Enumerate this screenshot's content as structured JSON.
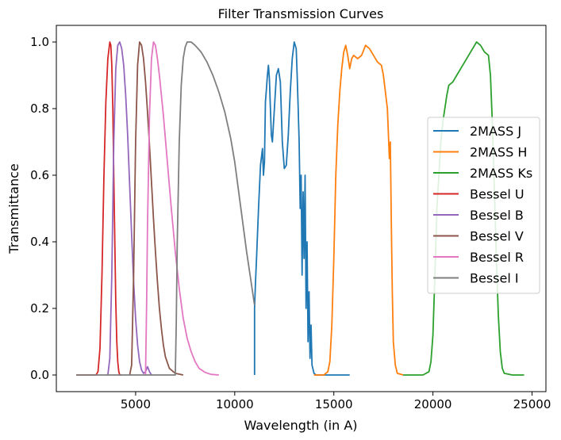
{
  "chart_data": {
    "type": "line",
    "title": "Filter Transmission Curves",
    "xlabel": "Wavelength (in A)",
    "ylabel": "Transmittance",
    "xlim": [
      1000,
      25700
    ],
    "ylim": [
      -0.05,
      1.05
    ],
    "xticks": [
      5000,
      10000,
      15000,
      20000,
      25000
    ],
    "yticks": [
      0.0,
      0.2,
      0.4,
      0.6,
      0.8,
      1.0
    ],
    "ytick_labels": [
      "0.0",
      "0.2",
      "0.4",
      "0.6",
      "0.8",
      "1.0"
    ],
    "grid": false,
    "legend_position": "center-right",
    "series": [
      {
        "name": "2MASS J",
        "color": "#1f77b4",
        "x": [
          11000,
          11000,
          11050,
          11100,
          11200,
          11300,
          11400,
          11450,
          11500,
          11550,
          11600,
          11650,
          11700,
          11750,
          11800,
          11850,
          11900,
          12000,
          12100,
          12200,
          12300,
          12400,
          12500,
          12600,
          12700,
          12800,
          12900,
          13000,
          13100,
          13150,
          13200,
          13250,
          13300,
          13350,
          13400,
          13450,
          13500,
          13550,
          13600,
          13650,
          13700,
          13750,
          13800,
          13850,
          13900,
          14000,
          14100,
          14200,
          14400,
          15000,
          15800
        ],
        "y": [
          0.0,
          0.2,
          0.28,
          0.35,
          0.5,
          0.63,
          0.68,
          0.6,
          0.64,
          0.82,
          0.86,
          0.9,
          0.93,
          0.89,
          0.8,
          0.72,
          0.7,
          0.8,
          0.9,
          0.92,
          0.88,
          0.7,
          0.62,
          0.63,
          0.72,
          0.85,
          0.95,
          1.0,
          0.98,
          0.9,
          0.8,
          0.7,
          0.5,
          0.6,
          0.3,
          0.55,
          0.35,
          0.6,
          0.2,
          0.4,
          0.1,
          0.25,
          0.05,
          0.15,
          0.03,
          0.005,
          0.0,
          0.0,
          0.0,
          0.0,
          0.0
        ]
      },
      {
        "name": "2MASS H",
        "color": "#ff7f0e",
        "x": [
          14000,
          14500,
          14700,
          14800,
          14900,
          15000,
          15100,
          15200,
          15300,
          15400,
          15500,
          15600,
          15700,
          15800,
          15900,
          16000,
          16200,
          16400,
          16600,
          16800,
          17000,
          17200,
          17400,
          17500,
          17600,
          17700,
          17800,
          17850,
          17900,
          17950,
          18000,
          18100,
          18200,
          18500
        ],
        "y": [
          0.0,
          0.0,
          0.01,
          0.04,
          0.15,
          0.35,
          0.6,
          0.75,
          0.85,
          0.92,
          0.97,
          0.99,
          0.96,
          0.92,
          0.95,
          0.96,
          0.95,
          0.96,
          0.99,
          0.98,
          0.96,
          0.94,
          0.93,
          0.9,
          0.85,
          0.8,
          0.65,
          0.7,
          0.45,
          0.25,
          0.1,
          0.03,
          0.005,
          0.0
        ]
      },
      {
        "name": "2MASS Ks",
        "color": "#2ca02c",
        "x": [
          18500,
          19000,
          19500,
          19800,
          19900,
          20000,
          20100,
          20200,
          20300,
          20400,
          20500,
          20600,
          20700,
          20800,
          21000,
          21200,
          21400,
          21600,
          21800,
          22000,
          22200,
          22400,
          22600,
          22800,
          22900,
          23000,
          23100,
          23200,
          23300,
          23400,
          23500,
          23600,
          24000,
          24600
        ],
        "y": [
          0.0,
          0.0,
          0.0,
          0.01,
          0.04,
          0.12,
          0.3,
          0.5,
          0.6,
          0.7,
          0.76,
          0.8,
          0.84,
          0.87,
          0.88,
          0.9,
          0.92,
          0.94,
          0.96,
          0.98,
          1.0,
          0.99,
          0.97,
          0.96,
          0.9,
          0.75,
          0.55,
          0.35,
          0.18,
          0.07,
          0.02,
          0.005,
          0.0,
          0.0
        ]
      },
      {
        "name": "Bessel U",
        "color": "#d62728",
        "x": [
          2000,
          3000,
          3100,
          3200,
          3300,
          3400,
          3500,
          3600,
          3700,
          3750,
          3800,
          3850,
          3900,
          3950,
          4000,
          4050,
          4100,
          4150,
          4200,
          4300
        ],
        "y": [
          0.0,
          0.0,
          0.01,
          0.08,
          0.3,
          0.6,
          0.82,
          0.95,
          1.0,
          0.99,
          0.93,
          0.8,
          0.6,
          0.4,
          0.22,
          0.1,
          0.04,
          0.01,
          0.0,
          0.0
        ]
      },
      {
        "name": "Bessel B",
        "color": "#9467bd",
        "x": [
          3600,
          3700,
          3800,
          3900,
          4000,
          4100,
          4200,
          4300,
          4400,
          4500,
          4600,
          4700,
          4800,
          4900,
          5000,
          5100,
          5200,
          5300,
          5400,
          5500,
          5600,
          5700,
          5800
        ],
        "y": [
          0.0,
          0.05,
          0.3,
          0.7,
          0.92,
          0.99,
          1.0,
          0.98,
          0.93,
          0.84,
          0.72,
          0.57,
          0.42,
          0.28,
          0.17,
          0.09,
          0.04,
          0.015,
          0.005,
          0.01,
          0.025,
          0.01,
          0.0
        ]
      },
      {
        "name": "Bessel V",
        "color": "#8c564b",
        "x": [
          4700,
          4800,
          4900,
          5000,
          5100,
          5200,
          5300,
          5400,
          5500,
          5600,
          5700,
          5800,
          5900,
          6000,
          6100,
          6200,
          6300,
          6400,
          6500,
          6700,
          7000,
          7400
        ],
        "y": [
          0.0,
          0.03,
          0.3,
          0.7,
          0.93,
          1.0,
          0.99,
          0.95,
          0.88,
          0.79,
          0.69,
          0.58,
          0.47,
          0.37,
          0.28,
          0.2,
          0.14,
          0.09,
          0.055,
          0.02,
          0.005,
          0.0
        ]
      },
      {
        "name": "Bessel R",
        "color": "#e377c2",
        "x": [
          5500,
          5550,
          5600,
          5700,
          5800,
          5900,
          6000,
          6100,
          6200,
          6400,
          6600,
          6800,
          7000,
          7200,
          7400,
          7600,
          7800,
          8000,
          8200,
          8500,
          8800,
          9200
        ],
        "y": [
          0.0,
          0.2,
          0.45,
          0.78,
          0.95,
          1.0,
          0.99,
          0.95,
          0.9,
          0.78,
          0.64,
          0.5,
          0.37,
          0.26,
          0.17,
          0.11,
          0.07,
          0.04,
          0.02,
          0.008,
          0.002,
          0.0
        ]
      },
      {
        "name": "Bessel I",
        "color": "#7f7f7f",
        "x": [
          2000,
          7000,
          7050,
          7100,
          7200,
          7300,
          7400,
          7500,
          7600,
          7700,
          7800,
          8000,
          8300,
          8600,
          8900,
          9200,
          9500,
          9800,
          10000,
          10200,
          10400,
          10600,
          10800,
          10950,
          11000
        ],
        "y": [
          0.0,
          0.0,
          0.15,
          0.4,
          0.7,
          0.87,
          0.95,
          0.985,
          1.0,
          1.0,
          1.0,
          0.99,
          0.97,
          0.94,
          0.9,
          0.85,
          0.79,
          0.71,
          0.64,
          0.55,
          0.46,
          0.37,
          0.29,
          0.23,
          0.21
        ]
      }
    ]
  }
}
